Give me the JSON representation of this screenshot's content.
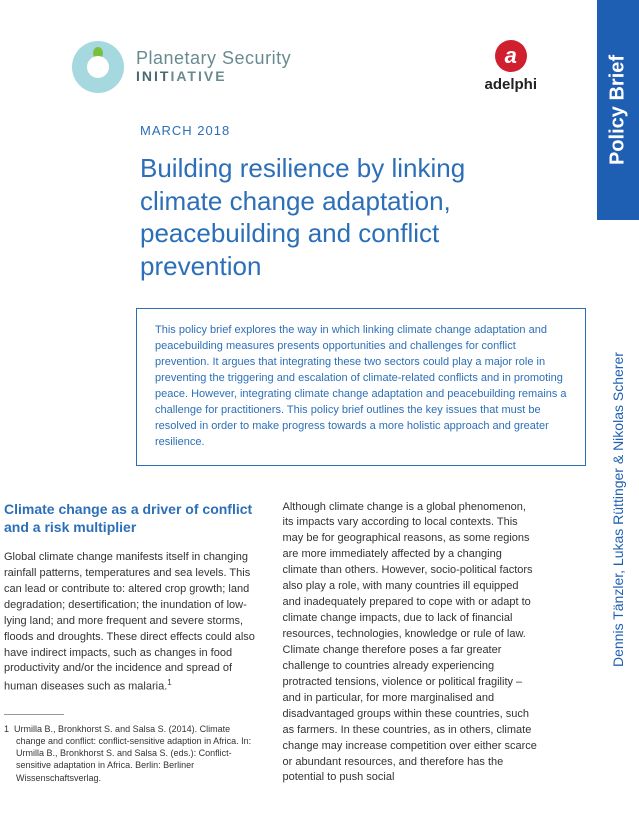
{
  "side": {
    "tab_label": "Policy Brief",
    "tab_bg": "#1f5fb3",
    "tab_color": "#ffffff",
    "authors": "Dennis Tänzler, Lukas Rüttinger & Nikolas Scherer",
    "authors_color": "#1f5fb3"
  },
  "logos": {
    "psi_top": "Planetary Security",
    "psi_bottom_a": "INIT",
    "psi_bottom_b": "IATIVE",
    "adelphi_letter": "a",
    "adelphi_name": "adelphi",
    "adelphi_badge_color": "#d02030"
  },
  "date": "MARCH 2018",
  "title": "Building resilience by linking climate change adaptation, peacebuilding and conflict prevention",
  "summary": "This policy brief explores the way in which linking climate change adaptation and peacebuilding measures presents opportunities and challenges for conflict prevention. It argues that integrating these two sectors could play a major role in preventing the triggering and escalation of climate-related conflicts and in promoting peace. However, integrating climate change adaptation and peacebuilding remains a challenge for practitioners. This policy brief outlines the key issues that must be resolved in order to make progress towards a more holistic approach and greater resilience.",
  "section_heading": "Climate change as a driver of conflict and a risk multiplier",
  "col1_p1": "Global climate change manifests itself in changing rainfall patterns, temperatures and sea levels. This can lead or contribute to: altered crop growth; land degradation; desertification; the inundation of low-lying land; and more frequent and severe storms, floods and droughts. These direct effects could also have indirect impacts, such as changes in food productivity and/or the incidence and spread of human diseases such as malaria.",
  "col1_sup": "1",
  "col2_p1": "Although climate change is a global phenomenon, its impacts vary according to local contexts. This may be for geographical reasons, as some regions are more immediately affected by a changing climate than others. However, socio-political factors also play a role, with many countries ill equipped and inadequately prepared to cope with or adapt to climate change impacts, due to lack of financial resources, technologies, knowledge or rule of law. Climate change therefore poses a far greater challenge to countries already experiencing protracted tensions, violence or political fragility – and in particular, for more marginalised and disadvantaged groups within these countries, such as farmers. In these countries, as in others, climate change may increase competition over either scarce or abundant resources, and therefore has the potential to push social",
  "footnote_num": "1",
  "footnote_text": "Urmilla B., Bronkhorst S. and Salsa S. (2014). Climate change and conflict: conflict-sensitive adaption in Africa. In: Urmilla B., Bronkhorst S. and Salsa S. (eds.): Conflict-sensitive adaptation in Africa. Berlin: Berliner Wissenschaftsverlag.",
  "colors": {
    "primary": "#2c6fb8",
    "body": "#333333",
    "psi_ring": "#a6d8e0",
    "psi_leaf": "#7bbf3f"
  },
  "typography": {
    "title_size_pt": 26,
    "body_size_pt": 11,
    "footnote_size_pt": 9,
    "date_size_pt": 13,
    "heading_size_pt": 14
  }
}
